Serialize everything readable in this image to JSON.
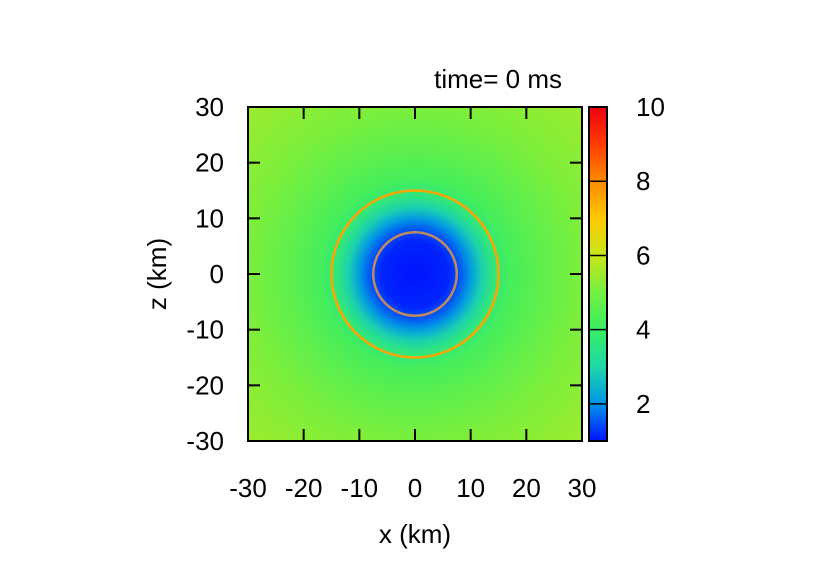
{
  "chart_data": {
    "type": "heatmap",
    "title": "time= 0 ms",
    "xlabel": "x (km)",
    "ylabel": "z (km)",
    "xlim": [
      -30,
      30
    ],
    "ylim": [
      -30,
      30
    ],
    "xticks": [
      "-30",
      "-20",
      "-10",
      "0",
      "10",
      "20",
      "30"
    ],
    "yticks": [
      "30",
      "20",
      "10",
      "0",
      "-10",
      "-20",
      "-30"
    ],
    "colorbar": {
      "range": [
        1,
        10
      ],
      "ticks": [
        "10",
        "8",
        "6",
        "4",
        "2"
      ],
      "tick_values": [
        10,
        8,
        6,
        4,
        2
      ],
      "palette": [
        "#0012ff",
        "#0094e8",
        "#1ed8a8",
        "#3aee62",
        "#72f040",
        "#c8e61a",
        "#ffc800",
        "#ff8a00",
        "#ff3c00",
        "#ee0010"
      ]
    },
    "field": {
      "profile_radius_km": [
        0,
        6,
        8,
        10,
        12,
        14,
        17,
        22,
        30,
        42.5
      ],
      "profile_value": [
        1.0,
        1.15,
        1.5,
        2.1,
        2.9,
        3.6,
        4.2,
        4.6,
        5.1,
        5.5
      ]
    },
    "contours": [
      {
        "radius_km": 7.5,
        "color": "#c08a60"
      },
      {
        "radius_km": 15,
        "color": "#ffa400"
      }
    ]
  }
}
